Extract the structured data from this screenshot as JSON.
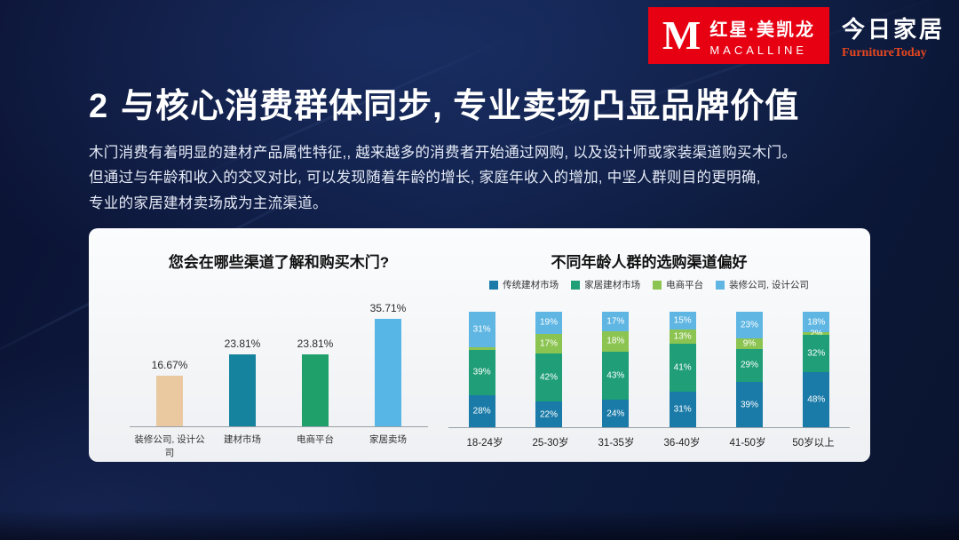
{
  "slide": {
    "number": "2",
    "title": "与核心消费群体同步, 专业卖场凸显品牌价值",
    "paragraph": [
      "木门消费有着明显的建材产品属性特征,, 越来越多的消费者开始通过网购, 以及设计师或家装渠道购买木门。",
      "但通过与年龄和收入的交叉对比, 可以发现随着年龄的增长, 家庭年收入的增加, 中坚人群则目的更明确,",
      "专业的家居建材卖场成为主流渠道。"
    ]
  },
  "logos": {
    "macalline": {
      "monogram": "M",
      "name_cn": "红星·美凯龙",
      "name_en": "MACALLINE",
      "bg_color": "#e60012"
    },
    "furniture_today": {
      "name_cn": "今日家居",
      "name_en": "FurnitureToday",
      "accent_color": "#e8471f"
    }
  },
  "chart_data": [
    {
      "type": "bar",
      "title": "您会在哪些渠道了解和购买木门?",
      "categories": [
        "装修公司, 设计公司",
        "建材市场",
        "电商平台",
        "家居卖场"
      ],
      "values": [
        16.67,
        23.81,
        23.81,
        35.71
      ],
      "labels": [
        "16.67%",
        "23.81%",
        "23.81%",
        "35.71%"
      ],
      "colors": [
        "#eac9a1",
        "#16839e",
        "#1fa06b",
        "#57b6e6"
      ],
      "xlabel": "",
      "ylabel": "",
      "ylim": [
        0,
        40
      ],
      "grid": false,
      "legend_position": "none"
    },
    {
      "type": "bar",
      "subtype": "stacked-100",
      "title": "不同年龄人群的选购渠道偏好",
      "categories": [
        "18-24岁",
        "25-30岁",
        "31-35岁",
        "36-40岁",
        "41-50岁",
        "50岁以上"
      ],
      "series": [
        {
          "name": "传统建材市场",
          "color": "#1a7ba8",
          "values": [
            28,
            22,
            24,
            31,
            39,
            48
          ],
          "labels": [
            "28%",
            "22%",
            "24%",
            "31%",
            "39%",
            "48%"
          ]
        },
        {
          "name": "家居建材市场",
          "color": "#1f9e77",
          "values": [
            39,
            42,
            43,
            41,
            29,
            32
          ],
          "labels": [
            "39%",
            "42%",
            "43%",
            "41%",
            "29%",
            "32%"
          ]
        },
        {
          "name": "电商平台",
          "color": "#8cc451",
          "values": [
            2,
            17,
            18,
            13,
            9,
            2
          ],
          "labels": [
            "",
            "17%",
            "18%",
            "13%",
            "9%",
            "2%"
          ]
        },
        {
          "name": "装修公司, 设计公司",
          "color": "#5fb6e3",
          "values": [
            31,
            19,
            17,
            15,
            23,
            18
          ],
          "labels": [
            "31%",
            "19%",
            "17%",
            "15%",
            "23%",
            "18%"
          ]
        }
      ],
      "xlabel": "",
      "ylabel": "",
      "ylim": [
        0,
        100
      ],
      "grid": false,
      "legend_position": "top"
    }
  ]
}
